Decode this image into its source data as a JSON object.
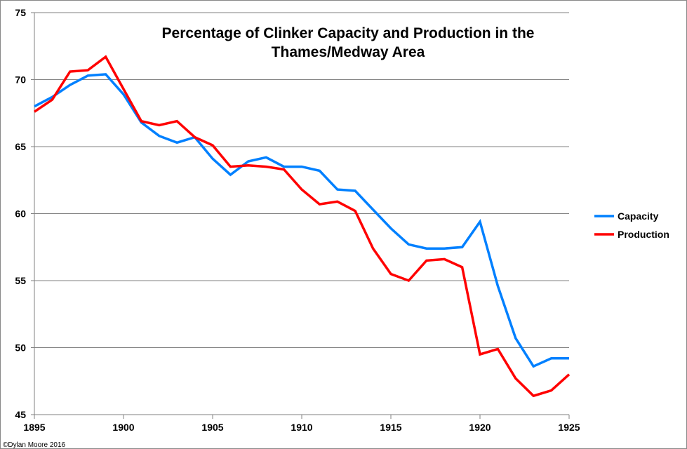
{
  "chart_data": {
    "type": "line",
    "title": [
      "Percentage of Clinker Capacity  and Production in the",
      "Thames/Medway Area"
    ],
    "xlabel": "",
    "ylabel": "",
    "xlim": [
      1895,
      1925
    ],
    "ylim": [
      45,
      75
    ],
    "xticks": [
      1895,
      1900,
      1905,
      1910,
      1915,
      1920,
      1925
    ],
    "yticks": [
      45,
      50,
      55,
      60,
      65,
      70,
      75
    ],
    "grid": "horizontal",
    "legend_position": "right",
    "x": [
      1895,
      1896,
      1897,
      1898,
      1899,
      1900,
      1901,
      1902,
      1903,
      1904,
      1905,
      1906,
      1907,
      1908,
      1909,
      1910,
      1911,
      1912,
      1913,
      1914,
      1915,
      1916,
      1917,
      1918,
      1919,
      1920,
      1921,
      1922,
      1923,
      1924,
      1925
    ],
    "series": [
      {
        "name": "Capacity",
        "color": "#0080ff",
        "values": [
          68.0,
          68.7,
          69.6,
          70.3,
          70.4,
          68.9,
          66.8,
          65.8,
          65.3,
          65.7,
          64.1,
          62.9,
          63.9,
          64.2,
          63.5,
          63.5,
          63.2,
          61.8,
          61.7,
          60.3,
          58.9,
          57.7,
          57.4,
          57.4,
          57.5,
          59.4,
          54.6,
          50.7,
          48.6,
          49.2,
          49.2
        ]
      },
      {
        "name": "Production",
        "color": "#ff0000",
        "values": [
          67.6,
          68.5,
          70.6,
          70.7,
          71.7,
          69.3,
          66.9,
          66.6,
          66.9,
          65.7,
          65.1,
          63.5,
          63.6,
          63.5,
          63.3,
          61.8,
          60.7,
          60.9,
          60.2,
          57.4,
          55.5,
          55.0,
          56.5,
          56.6,
          56.0,
          49.5,
          49.9,
          47.7,
          46.4,
          46.8,
          48.0
        ]
      }
    ]
  },
  "copyright": "©Dylan Moore 2016"
}
